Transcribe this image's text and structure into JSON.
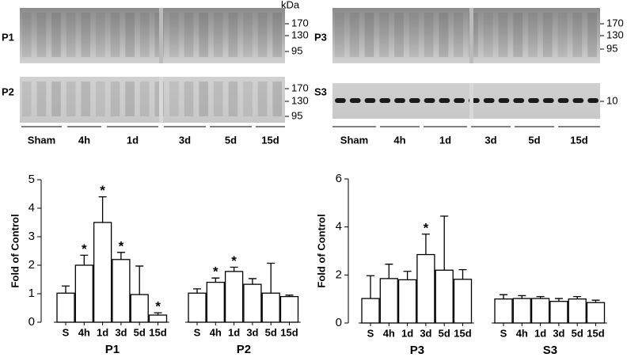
{
  "blots": {
    "left": {
      "unit": "kDa",
      "panels": [
        {
          "label": "P1",
          "markers": [
            "170",
            "130",
            "95"
          ]
        },
        {
          "label": "P2",
          "markers": [
            "170",
            "130",
            "95"
          ]
        }
      ],
      "groups": [
        "Sham",
        "4h",
        "1d",
        "3d",
        "5d",
        "15d"
      ]
    },
    "right": {
      "panels": [
        {
          "label": "P3",
          "markers": [
            "170",
            "130",
            "95"
          ]
        },
        {
          "label": "S3",
          "markers": [
            "10"
          ]
        }
      ],
      "groups": [
        "Sham",
        "4h",
        "1d",
        "3d",
        "5d",
        "15d"
      ]
    }
  },
  "chart_data": [
    {
      "type": "bar",
      "y_label": "Fold of Control",
      "ylim": [
        0,
        5
      ],
      "yticks": [
        0,
        1,
        2,
        3,
        4,
        5
      ],
      "color": "#ffffff",
      "groups": [
        {
          "name": "P1",
          "categories": [
            "S",
            "4h",
            "1d",
            "3d",
            "5d",
            "15d"
          ],
          "values": [
            1.02,
            2.0,
            3.5,
            2.2,
            0.97,
            0.25
          ],
          "errors": [
            0.25,
            0.35,
            0.9,
            0.25,
            1.0,
            0.08
          ],
          "annotations": [
            null,
            "*",
            "*",
            "*",
            null,
            "*"
          ]
        },
        {
          "name": "P2",
          "categories": [
            "S",
            "4h",
            "1d",
            "3d",
            "5d",
            "15d"
          ],
          "values": [
            1.02,
            1.4,
            1.78,
            1.33,
            1.02,
            0.9
          ],
          "errors": [
            0.15,
            0.15,
            0.15,
            0.2,
            1.05,
            0.05
          ],
          "annotations": [
            null,
            "*",
            "*",
            null,
            null,
            null
          ]
        }
      ]
    },
    {
      "type": "bar",
      "y_label": "Fold of Control",
      "ylim": [
        0,
        6
      ],
      "yticks": [
        0,
        2,
        4,
        6
      ],
      "color": "#ffffff",
      "groups": [
        {
          "name": "P3",
          "categories": [
            "S",
            "4h",
            "1d",
            "3d",
            "5d",
            "15d"
          ],
          "values": [
            1.02,
            1.85,
            1.8,
            2.85,
            2.2,
            1.82
          ],
          "errors": [
            0.95,
            0.6,
            0.35,
            0.85,
            2.25,
            0.4
          ],
          "annotations": [
            null,
            null,
            null,
            "*",
            null,
            null
          ]
        },
        {
          "name": "S3",
          "categories": [
            "S",
            "4h",
            "1d",
            "3d",
            "5d",
            "15d"
          ],
          "values": [
            1.0,
            1.02,
            1.02,
            0.9,
            1.0,
            0.85
          ],
          "errors": [
            0.18,
            0.12,
            0.08,
            0.12,
            0.1,
            0.1
          ],
          "annotations": [
            null,
            null,
            null,
            null,
            null,
            null
          ]
        }
      ]
    }
  ]
}
